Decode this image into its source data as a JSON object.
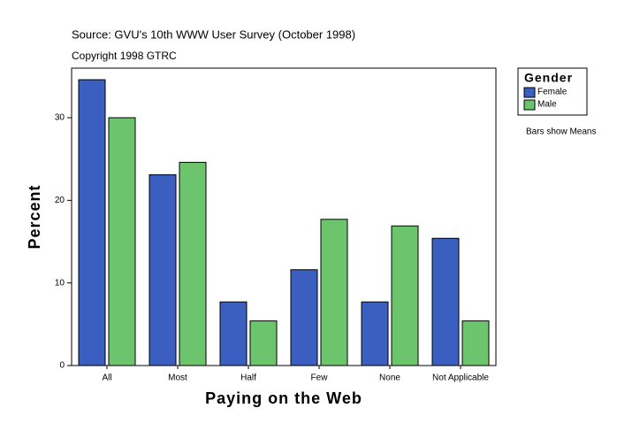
{
  "chart_data": {
    "type": "bar",
    "subtitle": "Source: GVU's 10th WWW User Survey (October 1998)",
    "copyright": "Copyright 1998 GTRC",
    "x_label": "Paying on the Web",
    "y_label": "Percent",
    "legend_title": "Gender",
    "note": "Bars show Means",
    "categories": [
      "All",
      "Most",
      "Half",
      "Few",
      "None",
      "Not Applicable"
    ],
    "series": [
      {
        "name": "Female",
        "color": "#3a5fc0",
        "values": [
          34.6,
          23.1,
          7.7,
          11.6,
          7.7,
          15.4
        ]
      },
      {
        "name": "Male",
        "color": "#6cc46c",
        "values": [
          30.0,
          24.6,
          5.4,
          17.7,
          16.9,
          5.4
        ]
      }
    ],
    "ylim": [
      0,
      36
    ],
    "yticks": [
      0,
      10,
      20,
      30
    ]
  }
}
